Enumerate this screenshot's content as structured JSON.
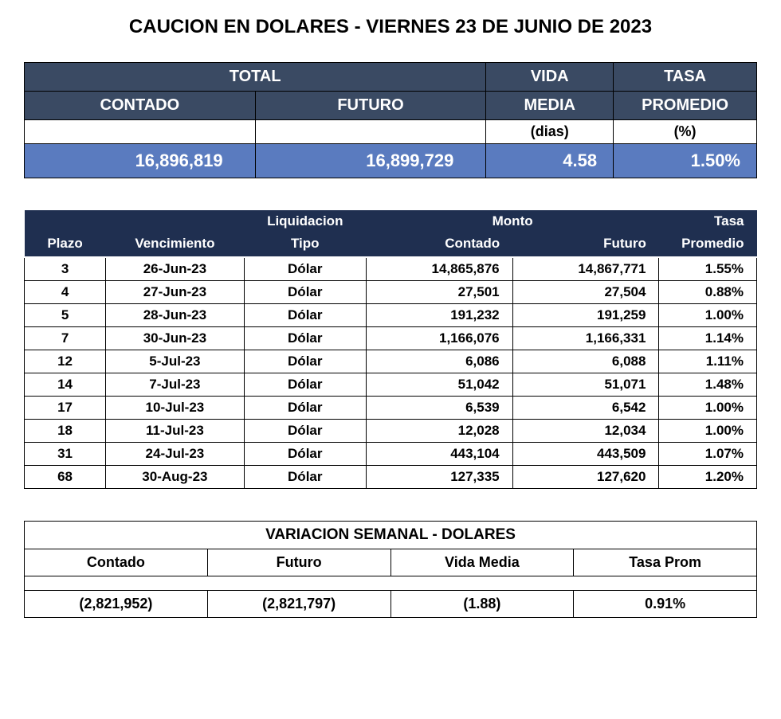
{
  "title": "CAUCION EN DOLARES - VIERNES 23 DE JUNIO DE 2023",
  "colors": {
    "header_dark": "#3a4a63",
    "header_navy": "#1f2f50",
    "row_blue": "#5a7bbf",
    "border": "#000000",
    "text_white": "#ffffff",
    "text_black": "#000000",
    "bg": "#ffffff"
  },
  "summary": {
    "headers": {
      "total": "TOTAL",
      "contado": "CONTADO",
      "futuro": "FUTURO",
      "vida_media": "VIDA",
      "vida_media2": "MEDIA",
      "tasa": "TASA",
      "tasa2": "PROMEDIO",
      "dias": "(dias)",
      "pct": "(%)"
    },
    "values": {
      "contado": "16,896,819",
      "futuro": "16,899,729",
      "vida_media": "4.58",
      "tasa_prom": "1.50%"
    }
  },
  "detail": {
    "headers": {
      "top": {
        "liquidacion": "Liquidacion",
        "monto": "Monto",
        "tasa": "Tasa"
      },
      "bottom": {
        "plazo": "Plazo",
        "vencimiento": "Vencimiento",
        "tipo": "Tipo",
        "contado": "Contado",
        "futuro": "Futuro",
        "promedio": "Promedio"
      }
    },
    "rows": [
      {
        "plazo": "3",
        "venc": "26-Jun-23",
        "tipo": "Dólar",
        "cont": "14,865,876",
        "fut": "14,867,771",
        "tasa": "1.55%"
      },
      {
        "plazo": "4",
        "venc": "27-Jun-23",
        "tipo": "Dólar",
        "cont": "27,501",
        "fut": "27,504",
        "tasa": "0.88%"
      },
      {
        "plazo": "5",
        "venc": "28-Jun-23",
        "tipo": "Dólar",
        "cont": "191,232",
        "fut": "191,259",
        "tasa": "1.00%"
      },
      {
        "plazo": "7",
        "venc": "30-Jun-23",
        "tipo": "Dólar",
        "cont": "1,166,076",
        "fut": "1,166,331",
        "tasa": "1.14%"
      },
      {
        "plazo": "12",
        "venc": "5-Jul-23",
        "tipo": "Dólar",
        "cont": "6,086",
        "fut": "6,088",
        "tasa": "1.11%"
      },
      {
        "plazo": "14",
        "venc": "7-Jul-23",
        "tipo": "Dólar",
        "cont": "51,042",
        "fut": "51,071",
        "tasa": "1.48%"
      },
      {
        "plazo": "17",
        "venc": "10-Jul-23",
        "tipo": "Dólar",
        "cont": "6,539",
        "fut": "6,542",
        "tasa": "1.00%"
      },
      {
        "plazo": "18",
        "venc": "11-Jul-23",
        "tipo": "Dólar",
        "cont": "12,028",
        "fut": "12,034",
        "tasa": "1.00%"
      },
      {
        "plazo": "31",
        "venc": "24-Jul-23",
        "tipo": "Dólar",
        "cont": "443,104",
        "fut": "443,509",
        "tasa": "1.07%"
      },
      {
        "plazo": "68",
        "venc": "30-Aug-23",
        "tipo": "Dólar",
        "cont": "127,335",
        "fut": "127,620",
        "tasa": "1.20%"
      }
    ]
  },
  "variation": {
    "title": "VARIACION SEMANAL - DOLARES",
    "headers": {
      "contado": "Contado",
      "futuro": "Futuro",
      "vida_media": "Vida Media",
      "tasa_prom": "Tasa Prom"
    },
    "values": {
      "contado": "(2,821,952)",
      "futuro": "(2,821,797)",
      "vida_media": "(1.88)",
      "tasa_prom": "0.91%"
    }
  }
}
